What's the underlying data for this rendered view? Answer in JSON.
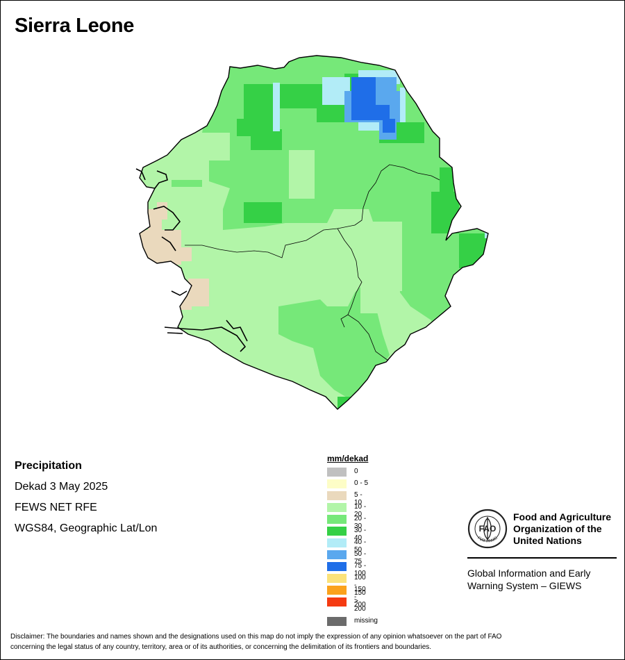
{
  "map": {
    "title": "Sierra Leone",
    "colors": {
      "border": "#000000",
      "c10_20": "#b2f5a8",
      "c20_30": "#76e879",
      "c30_40": "#35d046",
      "c40_50": "#b2ecf7",
      "c50_75": "#5aa8ee",
      "c75_100": "#1f6ee8",
      "c5_10": "#ead9bd"
    }
  },
  "info": {
    "variable": "Precipitation",
    "period": "Dekad 3 May 2025",
    "source": "FEWS NET RFE",
    "projection": "WGS84, Geographic Lat/Lon"
  },
  "legend": {
    "title": "mm/dekad",
    "items": [
      {
        "label": "0",
        "color": "#c0c0c0"
      },
      {
        "label": "0 - 5",
        "color": "#fdfdc7"
      },
      {
        "label": "5 - 10",
        "color": "#ead9bd"
      },
      {
        "label": "10 - 20",
        "color": "#b2f5a8"
      },
      {
        "label": "20 - 30",
        "color": "#76e879"
      },
      {
        "label": "30 - 40",
        "color": "#35d046"
      },
      {
        "label": "40 - 50",
        "color": "#b2ecf7"
      },
      {
        "label": "50 - 75",
        "color": "#5aa8ee"
      },
      {
        "label": "75 - 100",
        "color": "#1f6ee8"
      },
      {
        "label": "100 - 150",
        "color": "#fbe27a"
      },
      {
        "label": "150 - 200",
        "color": "#fba21c"
      },
      {
        "label": "> 200",
        "color": "#f53b12"
      }
    ],
    "missing": {
      "label": "missing",
      "color": "#6b6b6b"
    }
  },
  "fao": {
    "emblem_text": "FAO",
    "emblem_motto": "FIAT PANIS",
    "name_line1": "Food and Agriculture",
    "name_line2": "Organization of the",
    "name_line3": "United Nations",
    "giews_line1": "Global Information and Early",
    "giews_line2": "Warning System – GIEWS"
  },
  "disclaimer": {
    "line1": "Disclaimer: The boundaries and names shown and the designations used on this map do not imply the expression of any opinion whatsoever on the part of FAO",
    "line2": "concerning the legal status of any country, territory, area or of its authorities, or concerning the delimitation of its frontiers and boundaries."
  }
}
